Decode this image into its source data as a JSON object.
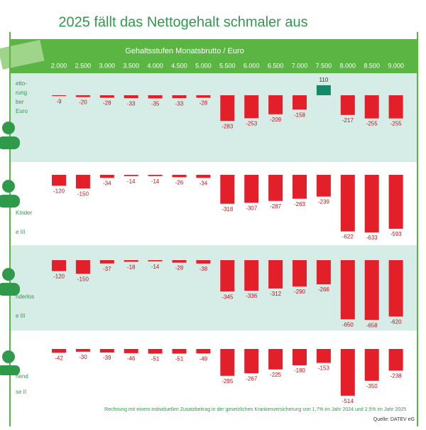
{
  "chart_data": {
    "type": "bar",
    "title": "2025 fällt das Nettogehalt schmaler aus",
    "subtitle": "Gehaltsstufen Monatsbrutto / Euro",
    "note": "Rechnung mit einem individuellen Zusatzbeitrag in der gesetzlichen Krankenversicherung von 1,7% im Jahr 2024 und 2,5% im Jahr 2025",
    "source": "Quelle: DATEV eG",
    "categories": [
      "2.000",
      "2.500",
      "3.000",
      "3.500",
      "4.000",
      "4.500",
      "5.000",
      "5.500",
      "6.000",
      "6.500",
      "7.000",
      "7.500",
      "8.000",
      "8.500",
      "9.000"
    ],
    "colors": {
      "negative": "#e3202a",
      "positive": "#17876a"
    },
    "series": [
      {
        "label": [
          "etto-",
          "rung",
          "ber",
          "Euro"
        ],
        "values": [
          -9,
          -20,
          -28,
          -33,
          -35,
          -33,
          -28,
          -283,
          -253,
          -209,
          -158,
          110,
          -217,
          -255,
          -255
        ]
      },
      {
        "label": [
          "Kinder",
          "e III"
        ],
        "values": [
          -120,
          -150,
          -34,
          -14,
          -14,
          -26,
          -34,
          -318,
          -307,
          -287,
          -263,
          -239,
          -622,
          -633,
          -593
        ]
      },
      {
        "label": [
          "nderlos",
          "e III"
        ],
        "values": [
          -120,
          -150,
          -37,
          -18,
          -14,
          -28,
          -38,
          -345,
          -336,
          -312,
          -290,
          -266,
          -650,
          -658,
          -620
        ]
      },
      {
        "label": [
          "hend",
          "se II"
        ],
        "values": [
          -42,
          -30,
          -39,
          -46,
          -51,
          -51,
          -49,
          -295,
          -267,
          -225,
          -180,
          -153,
          -514,
          -350,
          -238
        ]
      }
    ]
  }
}
